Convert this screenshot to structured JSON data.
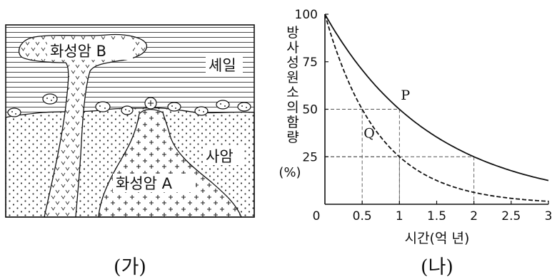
{
  "left_figure": {
    "caption": "(가)",
    "label_igneous_b": "화성암 B",
    "label_shale": "셰일",
    "label_sandstone": "사암",
    "label_igneous_a": "화성암 A"
  },
  "right_figure": {
    "caption": "(나)"
  },
  "chart_data": {
    "type": "line",
    "title": "",
    "ylabel": "방사성 원소의 함량",
    "ylabel_unit": "(%)",
    "xlabel": "시간(억 년)",
    "xlim": [
      0,
      3
    ],
    "ylim": [
      0,
      100
    ],
    "x_ticks": [
      "0",
      "0.5",
      "1",
      "1.5",
      "2",
      "2.5",
      "3"
    ],
    "y_ticks": [
      "25",
      "50",
      "75",
      "100"
    ],
    "series": [
      {
        "name": "P",
        "style": "solid",
        "half_life": 1,
        "x": [
          0,
          0.25,
          0.5,
          0.75,
          1,
          1.25,
          1.5,
          1.75,
          2,
          2.25,
          2.5,
          2.75,
          3
        ],
        "values": [
          100,
          84.1,
          70.7,
          59.5,
          50,
          42,
          35.4,
          29.7,
          25,
          21,
          17.7,
          14.9,
          12.5
        ]
      },
      {
        "name": "Q",
        "style": "dashed",
        "half_life": 0.5,
        "x": [
          0,
          0.25,
          0.5,
          0.75,
          1,
          1.25,
          1.5,
          1.75,
          2,
          2.25,
          2.5,
          2.75,
          3
        ],
        "values": [
          100,
          70.7,
          50,
          35.4,
          25,
          17.7,
          12.5,
          8.8,
          6.25,
          4.4,
          3.1,
          2.2,
          1.6
        ]
      }
    ],
    "guide_lines": [
      {
        "x": 0.5,
        "y": 50
      },
      {
        "x": 1,
        "y": 50
      },
      {
        "x": 1,
        "y": 25
      },
      {
        "x": 2,
        "y": 25
      }
    ]
  }
}
